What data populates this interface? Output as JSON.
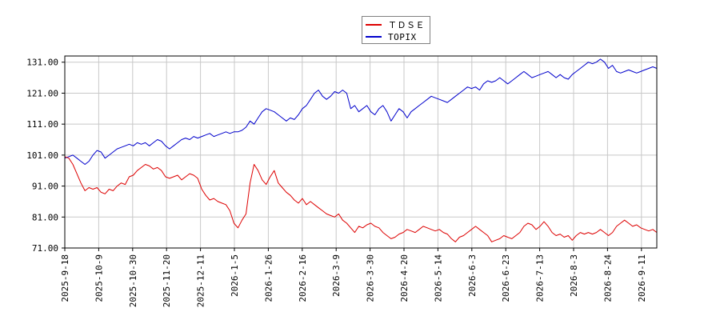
{
  "chart_data": {
    "type": "line",
    "title": "",
    "xlabel": "",
    "ylabel": "",
    "ylim": [
      71,
      133
    ],
    "yticks": [
      71,
      81,
      91,
      101,
      111,
      121,
      131
    ],
    "ytick_labels": [
      "71.00",
      "81.00",
      "91.00",
      "101.00",
      "111.00",
      "121.00",
      "131.00"
    ],
    "xticks": [
      "2025-9-18",
      "2025-10-9",
      "2025-10-30",
      "2025-11-20",
      "2025-12-11",
      "2026-1-5",
      "2026-1-26",
      "2026-2-16",
      "2026-3-9",
      "2026-3-30",
      "2026-4-20",
      "2026-5-14",
      "2026-6-3",
      "2026-6-23",
      "2026-7-13",
      "2026-8-3",
      "2026-8-24",
      "2026-9-11"
    ],
    "grid": true,
    "legend_position": "top-center",
    "series": [
      {
        "name": "ＴＤＳＥ",
        "color": "#dd0000",
        "points": [
          [
            0,
            100.5
          ],
          [
            1,
            100
          ],
          [
            2,
            98
          ],
          [
            3,
            95
          ],
          [
            4,
            92
          ],
          [
            5,
            89.5
          ],
          [
            6,
            90.5
          ],
          [
            7,
            90
          ],
          [
            8,
            90.5
          ],
          [
            9,
            89
          ],
          [
            10,
            88.5
          ],
          [
            11,
            90
          ],
          [
            12,
            89.5
          ],
          [
            13,
            91
          ],
          [
            14,
            92
          ],
          [
            15,
            91.5
          ],
          [
            16,
            94
          ],
          [
            17,
            94.5
          ],
          [
            18,
            96
          ],
          [
            19,
            97
          ],
          [
            20,
            98
          ],
          [
            21,
            97.5
          ],
          [
            22,
            96.5
          ],
          [
            23,
            97
          ],
          [
            24,
            96
          ],
          [
            25,
            94
          ],
          [
            26,
            93.5
          ],
          [
            27,
            94
          ],
          [
            28,
            94.5
          ],
          [
            29,
            93
          ],
          [
            30,
            94
          ],
          [
            31,
            95
          ],
          [
            32,
            94.5
          ],
          [
            33,
            93.5
          ],
          [
            34,
            90
          ],
          [
            35,
            88
          ],
          [
            36,
            86.5
          ],
          [
            37,
            87
          ],
          [
            38,
            86
          ],
          [
            39,
            85.5
          ],
          [
            40,
            85
          ],
          [
            41,
            83
          ],
          [
            42,
            79
          ],
          [
            43,
            77.5
          ],
          [
            44,
            80
          ],
          [
            45,
            82
          ],
          [
            46,
            92
          ],
          [
            47,
            98
          ],
          [
            48,
            96
          ],
          [
            49,
            93
          ],
          [
            50,
            91.5
          ],
          [
            51,
            94
          ],
          [
            52,
            96
          ],
          [
            53,
            92
          ],
          [
            54,
            90.5
          ],
          [
            55,
            89
          ],
          [
            56,
            88
          ],
          [
            57,
            86.5
          ],
          [
            58,
            85.5
          ],
          [
            59,
            87
          ],
          [
            60,
            85
          ],
          [
            61,
            86
          ],
          [
            62,
            85
          ],
          [
            63,
            84
          ],
          [
            64,
            83
          ],
          [
            65,
            82
          ],
          [
            66,
            81.5
          ],
          [
            67,
            81
          ],
          [
            68,
            82
          ],
          [
            69,
            80
          ],
          [
            70,
            79
          ],
          [
            71,
            77.5
          ],
          [
            72,
            76
          ],
          [
            73,
            78
          ],
          [
            74,
            77.5
          ],
          [
            75,
            78.5
          ],
          [
            76,
            79
          ],
          [
            77,
            78
          ],
          [
            78,
            77.5
          ],
          [
            79,
            76
          ],
          [
            80,
            75
          ],
          [
            81,
            74
          ],
          [
            82,
            74.5
          ],
          [
            83,
            75.5
          ],
          [
            84,
            76
          ],
          [
            85,
            77
          ],
          [
            86,
            76.5
          ],
          [
            87,
            76
          ],
          [
            88,
            77
          ],
          [
            89,
            78
          ],
          [
            90,
            77.5
          ],
          [
            91,
            77
          ],
          [
            92,
            76.5
          ],
          [
            93,
            77
          ],
          [
            94,
            76
          ],
          [
            95,
            75.5
          ],
          [
            96,
            74
          ],
          [
            97,
            73
          ],
          [
            98,
            74.5
          ],
          [
            99,
            75
          ],
          [
            100,
            76
          ],
          [
            101,
            77
          ],
          [
            102,
            78
          ],
          [
            103,
            77
          ],
          [
            104,
            76
          ],
          [
            105,
            75
          ],
          [
            106,
            73
          ],
          [
            107,
            73.5
          ],
          [
            108,
            74
          ],
          [
            109,
            75
          ],
          [
            110,
            74.5
          ],
          [
            111,
            74
          ],
          [
            112,
            75
          ],
          [
            113,
            76
          ],
          [
            114,
            78
          ],
          [
            115,
            79
          ],
          [
            116,
            78.5
          ],
          [
            117,
            77
          ],
          [
            118,
            78
          ],
          [
            119,
            79.5
          ],
          [
            120,
            78
          ],
          [
            121,
            76
          ],
          [
            122,
            75
          ],
          [
            123,
            75.5
          ],
          [
            124,
            74.5
          ],
          [
            125,
            75
          ],
          [
            126,
            73.5
          ],
          [
            127,
            75
          ],
          [
            128,
            76
          ],
          [
            129,
            75.5
          ],
          [
            130,
            76
          ],
          [
            131,
            75.5
          ],
          [
            132,
            76
          ],
          [
            133,
            77
          ],
          [
            134,
            76
          ],
          [
            135,
            75
          ],
          [
            136,
            76
          ],
          [
            137,
            78
          ],
          [
            138,
            79
          ],
          [
            139,
            80
          ],
          [
            140,
            79
          ],
          [
            141,
            78
          ],
          [
            142,
            78.5
          ],
          [
            143,
            77.5
          ],
          [
            144,
            77
          ],
          [
            145,
            76.5
          ],
          [
            146,
            77
          ],
          [
            147,
            76
          ]
        ]
      },
      {
        "name": "TOPIX",
        "color": "#0000cc",
        "points": [
          [
            0,
            100
          ],
          [
            1,
            100.5
          ],
          [
            2,
            101
          ],
          [
            3,
            100
          ],
          [
            4,
            99
          ],
          [
            5,
            98
          ],
          [
            6,
            99
          ],
          [
            7,
            101
          ],
          [
            8,
            102.5
          ],
          [
            9,
            102
          ],
          [
            10,
            100
          ],
          [
            11,
            101
          ],
          [
            12,
            102
          ],
          [
            13,
            103
          ],
          [
            14,
            103.5
          ],
          [
            15,
            104
          ],
          [
            16,
            104.5
          ],
          [
            17,
            104
          ],
          [
            18,
            105
          ],
          [
            19,
            104.5
          ],
          [
            20,
            105
          ],
          [
            21,
            104
          ],
          [
            22,
            105
          ],
          [
            23,
            106
          ],
          [
            24,
            105.5
          ],
          [
            25,
            104
          ],
          [
            26,
            103
          ],
          [
            27,
            104
          ],
          [
            28,
            105
          ],
          [
            29,
            106
          ],
          [
            30,
            106.5
          ],
          [
            31,
            106
          ],
          [
            32,
            107
          ],
          [
            33,
            106.5
          ],
          [
            34,
            107
          ],
          [
            35,
            107.5
          ],
          [
            36,
            108
          ],
          [
            37,
            107
          ],
          [
            38,
            107.5
          ],
          [
            39,
            108
          ],
          [
            40,
            108.5
          ],
          [
            41,
            108
          ],
          [
            42,
            108.5
          ],
          [
            43,
            108.5
          ],
          [
            44,
            109
          ],
          [
            45,
            110
          ],
          [
            46,
            112
          ],
          [
            47,
            111
          ],
          [
            48,
            113
          ],
          [
            49,
            115
          ],
          [
            50,
            116
          ],
          [
            51,
            115.5
          ],
          [
            52,
            115
          ],
          [
            53,
            114
          ],
          [
            54,
            113
          ],
          [
            55,
            112
          ],
          [
            56,
            113
          ],
          [
            57,
            112.5
          ],
          [
            58,
            114
          ],
          [
            59,
            116
          ],
          [
            60,
            117
          ],
          [
            61,
            119
          ],
          [
            62,
            121
          ],
          [
            63,
            122
          ],
          [
            64,
            120
          ],
          [
            65,
            119
          ],
          [
            66,
            120
          ],
          [
            67,
            121.5
          ],
          [
            68,
            121
          ],
          [
            69,
            122
          ],
          [
            70,
            121
          ],
          [
            71,
            116
          ],
          [
            72,
            117
          ],
          [
            73,
            115
          ],
          [
            74,
            116
          ],
          [
            75,
            117
          ],
          [
            76,
            115
          ],
          [
            77,
            114
          ],
          [
            78,
            116
          ],
          [
            79,
            117
          ],
          [
            80,
            115
          ],
          [
            81,
            112
          ],
          [
            82,
            114
          ],
          [
            83,
            116
          ],
          [
            84,
            115
          ],
          [
            85,
            113
          ],
          [
            86,
            115
          ],
          [
            87,
            116
          ],
          [
            88,
            117
          ],
          [
            89,
            118
          ],
          [
            90,
            119
          ],
          [
            91,
            120
          ],
          [
            92,
            119.5
          ],
          [
            93,
            119
          ],
          [
            94,
            118.5
          ],
          [
            95,
            118
          ],
          [
            96,
            119
          ],
          [
            97,
            120
          ],
          [
            98,
            121
          ],
          [
            99,
            122
          ],
          [
            100,
            123
          ],
          [
            101,
            122.5
          ],
          [
            102,
            123
          ],
          [
            103,
            122
          ],
          [
            104,
            124
          ],
          [
            105,
            125
          ],
          [
            106,
            124.5
          ],
          [
            107,
            125
          ],
          [
            108,
            126
          ],
          [
            109,
            125
          ],
          [
            110,
            124
          ],
          [
            111,
            125
          ],
          [
            112,
            126
          ],
          [
            113,
            127
          ],
          [
            114,
            128
          ],
          [
            115,
            127
          ],
          [
            116,
            126
          ],
          [
            117,
            126.5
          ],
          [
            118,
            127
          ],
          [
            119,
            127.5
          ],
          [
            120,
            128
          ],
          [
            121,
            127
          ],
          [
            122,
            126
          ],
          [
            123,
            127
          ],
          [
            124,
            126
          ],
          [
            125,
            125.5
          ],
          [
            126,
            127
          ],
          [
            127,
            128
          ],
          [
            128,
            129
          ],
          [
            129,
            130
          ],
          [
            130,
            131
          ],
          [
            131,
            130.5
          ],
          [
            132,
            131
          ],
          [
            133,
            132
          ],
          [
            134,
            131
          ],
          [
            135,
            129
          ],
          [
            136,
            130
          ],
          [
            137,
            128
          ],
          [
            138,
            127.5
          ],
          [
            139,
            128
          ],
          [
            140,
            128.5
          ],
          [
            141,
            128
          ],
          [
            142,
            127.5
          ],
          [
            143,
            128
          ],
          [
            144,
            128.5
          ],
          [
            145,
            129
          ],
          [
            146,
            129.5
          ],
          [
            147,
            129
          ]
        ]
      }
    ]
  }
}
